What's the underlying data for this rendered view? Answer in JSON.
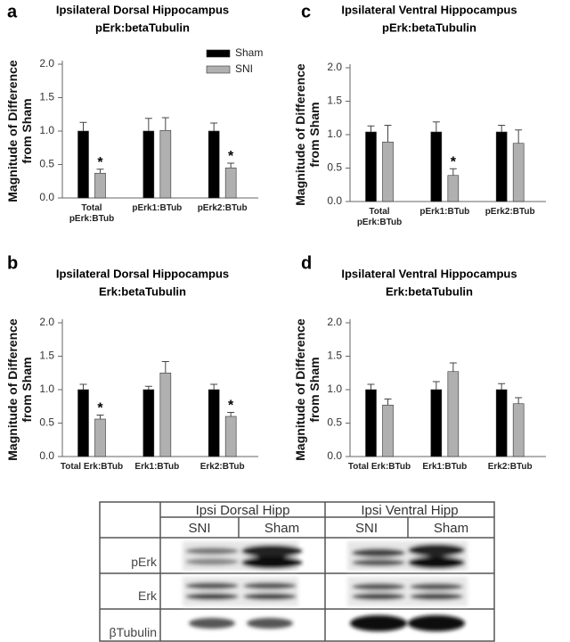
{
  "chart_data": [
    {
      "type": "bar",
      "panel": "a",
      "title": "Ipsilateral Dorsal Hippocampus",
      "subtitle": "pErk:betaTubulin",
      "y_label": "Magnitude of Difference from Sham",
      "categories": [
        "Total pErk:BTub",
        "pErk1:BTub",
        "pErk2:BTub"
      ],
      "series": [
        {
          "name": "Sham",
          "color": "#000000",
          "values": [
            1.0,
            1.0,
            1.0
          ],
          "errors": [
            0.13,
            0.19,
            0.12
          ]
        },
        {
          "name": "SNI",
          "color": "#b0b0b0",
          "values": [
            0.37,
            1.01,
            0.45
          ],
          "errors": [
            0.06,
            0.19,
            0.07
          ],
          "significance": [
            "*",
            null,
            "*"
          ]
        }
      ],
      "ylim": [
        0,
        2
      ],
      "yticks": [
        {
          "value": 0,
          "label": "0.0"
        },
        {
          "value": 0.5,
          "label": "0.5"
        },
        {
          "value": 1,
          "label": "1.0"
        },
        {
          "value": 1.5,
          "label": "1.5"
        },
        {
          "value": 2,
          "label": "2.0"
        }
      ]
    },
    {
      "type": "bar",
      "panel": "b",
      "title": "Ipsilateral Dorsal Hippocampus",
      "subtitle": "Erk:betaTubulin",
      "y_label": "Magnitude of Difference from Sham",
      "categories": [
        "Total Erk:BTub",
        "Erk1:BTub",
        "Erk2:BTub"
      ],
      "series": [
        {
          "color": "#000000",
          "values": [
            1.0,
            1.0,
            1.0
          ],
          "errors": [
            0.08,
            0.05,
            0.08
          ]
        },
        {
          "color": "#b0b0b0",
          "values": [
            0.56,
            1.25,
            0.6
          ],
          "errors": [
            0.06,
            0.17,
            0.06
          ],
          "significance": [
            "*",
            null,
            "*"
          ]
        }
      ],
      "ylim": [
        0,
        2
      ],
      "yticks": [
        {
          "value": 0,
          "label": "0.0"
        },
        {
          "value": 0.5,
          "label": "0.5"
        },
        {
          "value": 1,
          "label": "1.0"
        },
        {
          "value": 1.5,
          "label": "1.5"
        },
        {
          "value": 2,
          "label": "2.0"
        }
      ]
    },
    {
      "type": "bar",
      "panel": "c",
      "title": "Ipsilateral Ventral Hippocampus",
      "subtitle": "pErk:betaTubulin",
      "y_label": "Magnitude of Difference from Sham",
      "categories": [
        "Total pErk:BTub",
        "pErk1:BTub",
        "pErk2:BTub"
      ],
      "series": [
        {
          "color": "#000000",
          "values": [
            1.04,
            1.04,
            1.04
          ],
          "errors": [
            0.09,
            0.15,
            0.1
          ]
        },
        {
          "color": "#b0b0b0",
          "values": [
            0.89,
            0.39,
            0.87
          ],
          "errors": [
            0.25,
            0.1,
            0.2
          ],
          "significance": [
            null,
            "*",
            null
          ]
        }
      ],
      "ylim": [
        0,
        2
      ],
      "yticks": [
        {
          "value": 0,
          "label": "0.0"
        },
        {
          "value": 0.5,
          "label": "0.5"
        },
        {
          "value": 1,
          "label": "1.0"
        },
        {
          "value": 1.5,
          "label": "1.5"
        },
        {
          "value": 2,
          "label": "2.0"
        }
      ]
    },
    {
      "type": "bar",
      "panel": "d",
      "title": "Ipsilateral Ventral Hippocampus",
      "subtitle": "Erk:betaTubulin",
      "y_label": "Magnitude of Difference from Sham",
      "categories": [
        "Total Erk:BTub",
        "Erk1:BTub",
        "Erk2:BTub"
      ],
      "series": [
        {
          "color": "#000000",
          "values": [
            1.0,
            1.0,
            1.0
          ],
          "errors": [
            0.08,
            0.12,
            0.09
          ]
        },
        {
          "color": "#b0b0b0",
          "values": [
            0.77,
            1.27,
            0.79
          ],
          "errors": [
            0.09,
            0.13,
            0.09
          ]
        }
      ],
      "ylim": [
        0,
        2
      ],
      "yticks": [
        {
          "value": 0,
          "label": "0.0"
        },
        {
          "value": 0.5,
          "label": "0.5"
        },
        {
          "value": 1,
          "label": "1.0"
        },
        {
          "value": 1.5,
          "label": "1.5"
        },
        {
          "value": 2,
          "label": "2.0"
        }
      ]
    }
  ],
  "blot_table": {
    "groups": [
      "Ipsi Dorsal Hipp",
      "Ipsi Ventral Hipp"
    ],
    "conditions": [
      "SNI",
      "Sham",
      "SNI",
      "Sham"
    ],
    "rows": [
      "pErk",
      "Erk",
      "βTubulin"
    ]
  }
}
